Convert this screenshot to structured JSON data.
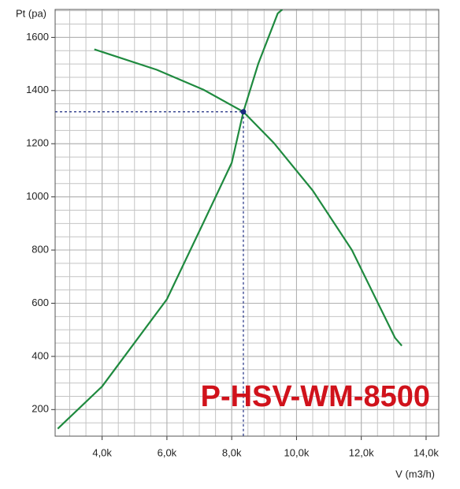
{
  "chart_data": {
    "type": "line",
    "title": "P-HSV-WM-8500",
    "x_label": "V (m3/h)",
    "y_label": "Pt (pa)",
    "xlim": [
      2550,
      14390
    ],
    "ylim": [
      100,
      1705
    ],
    "xticks": [
      {
        "value": 4000,
        "label": "4,0k"
      },
      {
        "value": 6000,
        "label": "6,0k"
      },
      {
        "value": 8000,
        "label": "8,0k"
      },
      {
        "value": 10000,
        "label": "10,0k"
      },
      {
        "value": 12000,
        "label": "12,0k"
      },
      {
        "value": 14000,
        "label": "14,0k"
      }
    ],
    "yticks": [
      200,
      400,
      600,
      800,
      1000,
      1200,
      1400,
      1600
    ],
    "grid": true,
    "series": [
      {
        "color": "#1f8a3f",
        "x": [
          3760,
          5690,
          7130,
          8360,
          9300,
          10500,
          11710,
          13040,
          13250
        ],
        "values": [
          1555,
          1478,
          1403,
          1320,
          1203,
          1024,
          800,
          470,
          440
        ]
      },
      {
        "color": "#1f8a3f",
        "x": [
          2630,
          4000,
          6000,
          7130,
          8000,
          8360,
          8820,
          9420,
          9560
        ],
        "values": [
          128,
          287,
          615,
          904,
          1128,
          1320,
          1501,
          1690,
          1705
        ]
      }
    ],
    "operating_point": {
      "x": 8360,
      "y": 1320,
      "color": "#1a2a80"
    }
  }
}
